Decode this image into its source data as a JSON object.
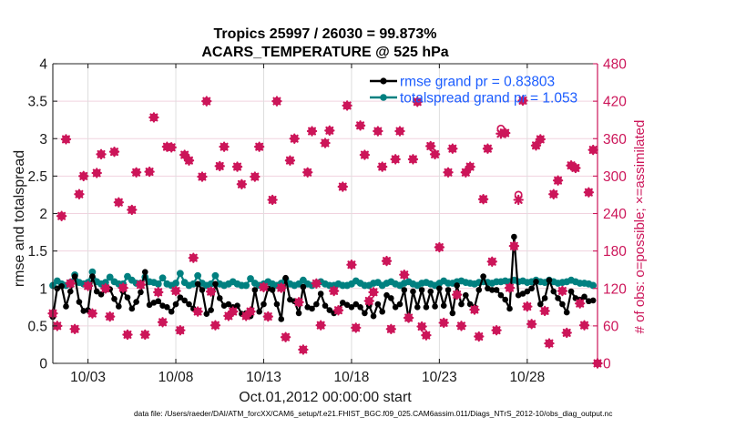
{
  "chart_data": {
    "type": "line",
    "title": [
      "Tropics 25997 / 26030 = 99.873%",
      "ACARS_TEMPERATURE @ 525 hPa"
    ],
    "xlabel": "Oct.01,2012 00:00:00 start",
    "ylabel_left": "rmse and totalspread",
    "ylabel_right": "# of obs: o=possible; ×=assimilated",
    "xlim_days": [
      0,
      31
    ],
    "x_start_day": 0,
    "x_step_days": 0.25,
    "x_ticks": [
      {
        "day": 2,
        "label": "10/03"
      },
      {
        "day": 7,
        "label": "10/08"
      },
      {
        "day": 12,
        "label": "10/13"
      },
      {
        "day": 17,
        "label": "10/18"
      },
      {
        "day": 22,
        "label": "10/23"
      },
      {
        "day": 27,
        "label": "10/28"
      }
    ],
    "ylim_left": [
      0,
      4
    ],
    "yticks_left": [
      0,
      0.5,
      1,
      1.5,
      2,
      2.5,
      3,
      3.5,
      4
    ],
    "ytick_labels_left": [
      "0",
      "0.5",
      "1",
      "1.5",
      "2",
      "2.5",
      "3",
      "3.5",
      "4"
    ],
    "ylim_right": [
      0,
      480
    ],
    "yticks_right": [
      0,
      60,
      120,
      180,
      240,
      300,
      360,
      420,
      480
    ],
    "ytick_labels_right": [
      "0",
      "60",
      "120",
      "180",
      "240",
      "300",
      "360",
      "420",
      "480"
    ],
    "axis_right_color": "#cc1559",
    "grid": true,
    "legend_position": "top-right",
    "series": [
      {
        "name": "rmse grand pr = 0.83803",
        "axis": "left",
        "style": "line+markers",
        "color": "#000000",
        "values": [
          0.62,
          1.0,
          1.03,
          0.76,
          0.96,
          1.16,
          0.82,
          0.7,
          0.71,
          1.16,
          0.96,
          0.92,
          0.98,
          0.99,
          0.86,
          0.76,
          0.96,
          0.88,
          0.73,
          0.82,
          0.95,
          1.22,
          0.78,
          0.81,
          0.83,
          0.77,
          0.75,
          0.69,
          0.79,
          0.88,
          0.84,
          0.79,
          0.73,
          1.06,
          0.98,
          0.66,
          0.71,
          1.06,
          0.87,
          0.77,
          0.79,
          0.75,
          0.77,
          0.66,
          0.67,
          0.63,
          0.98,
          0.69,
          0.79,
          1.0,
          0.98,
          0.79,
          0.59,
          1.14,
          0.85,
          0.83,
          0.67,
          1.02,
          0.75,
          0.73,
          0.79,
          0.93,
          0.77,
          0.71,
          0.67,
          0.71,
          0.81,
          0.78,
          0.75,
          0.79,
          0.75,
          0.67,
          0.77,
          0.63,
          0.79,
          0.69,
          0.91,
          0.87,
          0.75,
          0.79,
          0.98,
          0.59,
          0.96,
          0.75,
          0.98,
          0.75,
          0.96,
          0.76,
          1.0,
          0.77,
          0.98,
          0.67,
          1.04,
          0.79,
          0.91,
          0.79,
          0.75,
          0.98,
          1.16,
          1.0,
          0.98,
          0.98,
          0.91,
          0.85,
          0.73,
          1.69,
          0.91,
          0.93,
          0.96,
          1.0,
          1.09,
          0.79,
          0.87,
          1.11,
          0.96,
          0.87,
          0.79,
          0.68,
          0.96,
          0.87,
          0.85,
          0.89,
          0.83,
          0.84,
          null
        ]
      },
      {
        "name": "totalspread grand pr = 1.053",
        "axis": "left",
        "style": "line+markers",
        "color": "#008080",
        "values": [
          1.04,
          1.1,
          1.06,
          1.04,
          1.08,
          1.18,
          1.08,
          1.06,
          1.08,
          1.22,
          1.09,
          1.06,
          1.08,
          1.15,
          1.09,
          1.06,
          1.06,
          1.16,
          1.11,
          1.07,
          1.07,
          1.15,
          1.09,
          1.08,
          1.06,
          1.14,
          1.06,
          1.04,
          1.07,
          1.2,
          1.08,
          1.04,
          1.06,
          1.17,
          1.07,
          1.04,
          1.06,
          1.17,
          1.06,
          1.04,
          1.06,
          1.09,
          1.06,
          1.04,
          1.04,
          1.13,
          1.07,
          1.04,
          1.06,
          1.09,
          1.06,
          1.04,
          1.07,
          1.12,
          1.06,
          1.04,
          1.06,
          1.11,
          1.06,
          1.04,
          1.07,
          1.09,
          1.06,
          1.04,
          1.04,
          1.06,
          1.04,
          1.04,
          1.06,
          1.1,
          1.07,
          1.04,
          1.04,
          1.07,
          1.08,
          1.04,
          1.07,
          1.09,
          1.06,
          1.04,
          1.07,
          1.09,
          1.06,
          1.04,
          1.07,
          1.08,
          1.06,
          1.04,
          1.07,
          1.1,
          1.07,
          1.07,
          1.09,
          1.1,
          1.08,
          1.07,
          1.06,
          1.08,
          1.09,
          1.08,
          1.07,
          1.09,
          1.09,
          1.1,
          1.09,
          1.11,
          1.09,
          1.1,
          1.08,
          1.09,
          1.11,
          1.09,
          1.08,
          1.11,
          1.09,
          1.07,
          1.08,
          1.09,
          1.11,
          1.09,
          1.07,
          1.07,
          1.06,
          1.04,
          null
        ]
      },
      {
        "name": "possible",
        "axis": "right",
        "style": "markers-o",
        "color": "#cc1559",
        "values": [
          80,
          60,
          236,
          359,
          128,
          55,
          271,
          300,
          124,
          80,
          305,
          335,
          120,
          75,
          339,
          258,
          121,
          46,
          246,
          306,
          126,
          46,
          307,
          394,
          114,
          66,
          347,
          346,
          116,
          53,
          334,
          325,
          169,
          83,
          299,
          420,
          115,
          61,
          316,
          347,
          76,
          83,
          315,
          287,
          76,
          83,
          299,
          347,
          122,
          75,
          262,
          420,
          121,
          42,
          325,
          360,
          98,
          22,
          306,
          372,
          128,
          61,
          353,
          373,
          116,
          85,
          283,
          413,
          158,
          57,
          381,
          334,
          100,
          114,
          372,
          315,
          164,
          55,
          327,
          372,
          142,
          73,
          327,
          419,
          59,
          45,
          348,
          335,
          186,
          65,
          306,
          344,
          110,
          60,
          306,
          315,
          86,
          43,
          263,
          344,
          163,
          53,
          376,
          369,
          121,
          188,
          270,
          421,
          91,
          63,
          349,
          359,
          84,
          32,
          271,
          293,
          116,
          49,
          317,
          313,
          96,
          61,
          274,
          342,
          0
        ]
      },
      {
        "name": "assimilated",
        "axis": "right",
        "style": "markers-x",
        "color": "#cc1559",
        "values": [
          80,
          60,
          236,
          359,
          128,
          55,
          271,
          300,
          124,
          80,
          305,
          335,
          120,
          75,
          339,
          258,
          121,
          46,
          246,
          306,
          126,
          46,
          307,
          394,
          114,
          66,
          347,
          346,
          116,
          53,
          334,
          325,
          169,
          83,
          299,
          420,
          115,
          61,
          316,
          347,
          76,
          83,
          315,
          287,
          76,
          83,
          299,
          347,
          122,
          75,
          262,
          420,
          121,
          42,
          325,
          360,
          98,
          22,
          306,
          372,
          128,
          61,
          353,
          373,
          116,
          85,
          283,
          413,
          158,
          57,
          381,
          334,
          100,
          114,
          372,
          315,
          164,
          55,
          327,
          372,
          142,
          73,
          327,
          419,
          59,
          45,
          348,
          335,
          186,
          65,
          306,
          344,
          110,
          60,
          306,
          315,
          86,
          43,
          263,
          344,
          163,
          53,
          368,
          369,
          121,
          188,
          262,
          421,
          91,
          63,
          349,
          359,
          84,
          32,
          271,
          293,
          116,
          49,
          317,
          313,
          96,
          61,
          274,
          342,
          0
        ]
      }
    ],
    "legend_text_color": "#1a5cff",
    "footer": "data file: /Users/raeder/DAI/ATM_forcXX/CAM6_setup/f.e21.FHIST_BGC.f09_025.CAM6assim.011/Diags_NTrS_2012-10/obs_diag_output.nc"
  }
}
